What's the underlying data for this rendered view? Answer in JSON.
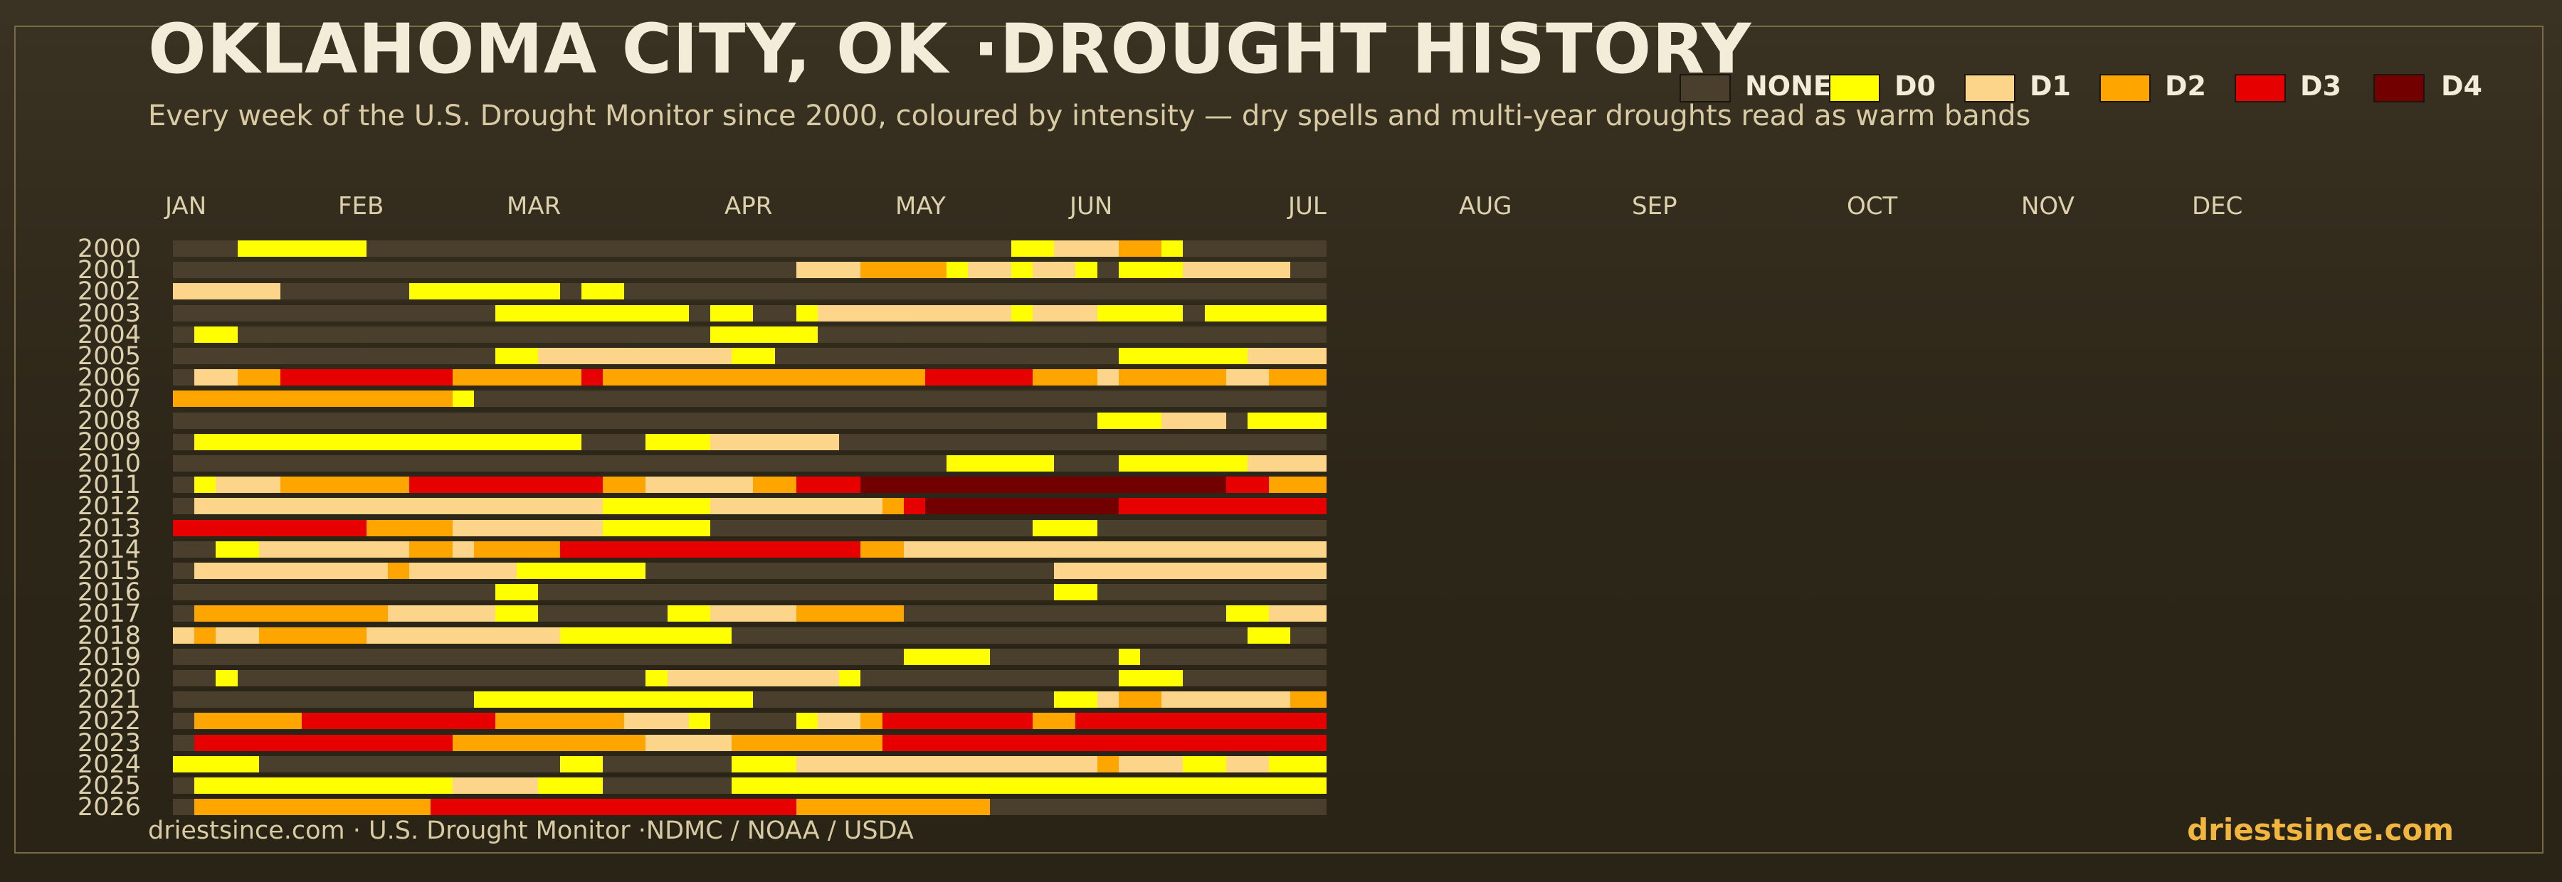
{
  "title": "OKLAHOMA CITY, OK ·DROUGHT HISTORY",
  "subtitle": "Every week of the U.S. Drought Monitor since 2000, coloured by intensity — dry spells and multi-year droughts read as warm bands",
  "footer_left": "driestsince.com  · U.S. Drought Monitor ·NDMC / NOAA / USDA",
  "footer_right": "driestsince.com",
  "colors": {
    "background": "#2e2719",
    "accent": "#f0b640",
    "NONE": "#4a3f2c",
    "D0": "#ffff00",
    "D1": "#fcd48a",
    "D2": "#ffa500",
    "D3": "#e60000",
    "D4": "#730000"
  },
  "chart_data": {
    "type": "heatmap",
    "title": "OKLAHOMA CITY, OK ·DROUGHT HISTORY",
    "xlabel": "",
    "ylabel": "",
    "months": [
      "JAN",
      "FEB",
      "MAR",
      "APR",
      "MAY",
      "JUN",
      "JUL",
      "AUG",
      "SEP",
      "OCT",
      "NOV",
      "DEC"
    ],
    "years": [
      "2000",
      "2001",
      "2002",
      "2003",
      "2004",
      "2005",
      "2006",
      "2007",
      "2008",
      "2009",
      "2010",
      "2011",
      "2012",
      "2013",
      "2014",
      "2015",
      "2016",
      "2017",
      "2018",
      "2019",
      "2020",
      "2021",
      "2022",
      "2023",
      "2024",
      "2025",
      "2026"
    ],
    "legend": [
      "NONE",
      "D0",
      "D1",
      "D2",
      "D3",
      "D4"
    ],
    "legend_position": "top-right",
    "weeks_per_year": 53,
    "encoding": "0=NONE 1=D0 2=D1 3=D2 4=D3 5=D4, one row per year, one value per week",
    "rows": [
      "00011111100000000000000000000000000000011222331000000",
      "00000000000000000000000000000222333312212210111222220",
      "22222000000111111101100000000000000000000000000000000",
      "00000000000000011111111101100122222222212221111011111",
      "01100000000000000000000001111100000000000000000000000",
      "00000000000000011222222222110000000000000000111111222",
      "02233444444443333334333333333333333444443332333332233",
      "33333333333331000000000000000000000000000000000000000",
      "00000000000000000000000000000000000000000001112220111",
      "01111111111111111110001112222220000000000000000000000",
      "00000000000000000000000000000000000011111000111111222",
      "01222333333444444444332222233444555555555555555554433",
      "02222222222222222222111112222222234555555555444444444",
      "44444444433332222222111110000000000000001110000000000",
      "00112222222332333344444444444444332222222222222222222",
      "02222222223222221111110000000000000000000222222222222",
      "00000000000000011000000000000000000000000110000000000",
      "03333333332222211000000112222333330000000000000001122",
      "23223333322222222211111111000000000000000000000000110",
      "00000000000000000000000000000000001111000000100000000",
      "00100000000000000000001222222221000000000000111000000",
      "00000000000000111111111111100000000000000112332222223",
      "03333344444444433333322210000122344444443344444444444",
      "04444444444443333333332222333333344444444444444444444",
      "11110000000000000011000000111222222222222223222112211",
      "01111111111112222111000000111111111111111111111111111",
      "03333333333344444444444444444333333333000000000000000"
    ]
  }
}
